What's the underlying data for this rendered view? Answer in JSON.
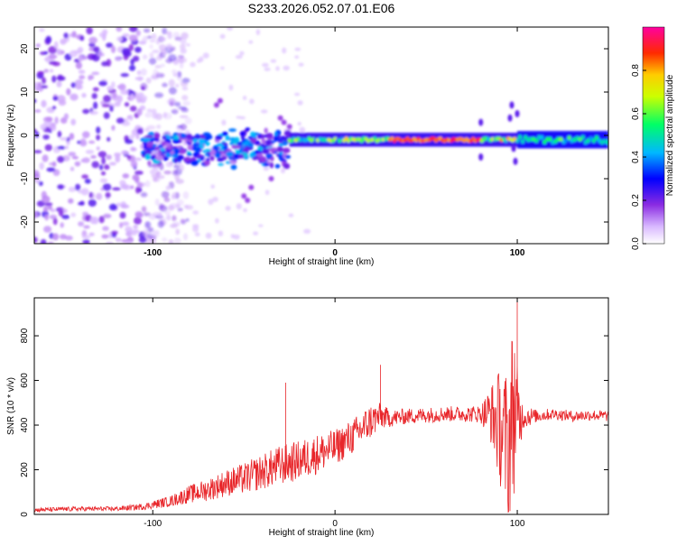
{
  "title": "S233.2026.052.07.01.E06",
  "colors": {
    "snr_line": "#e8262a",
    "text": "#000000",
    "frame": "#000000"
  },
  "chart_data": [
    {
      "type": "heatmap",
      "title": "S233.2026.052.07.01.E06",
      "xlabel": "Height of straight line (km)",
      "ylabel": "Frequency (Hz)",
      "xlim": [
        -165,
        150
      ],
      "ylim": [
        -25,
        25
      ],
      "xticks": [
        -100,
        0,
        100
      ],
      "yticks": [
        -20,
        -10,
        0,
        10,
        20
      ],
      "ytick_labels": [
        "-20",
        "-10",
        "0",
        "10",
        "20"
      ],
      "xtick_labels": [
        "-100",
        "0",
        "100"
      ],
      "grid": false,
      "colorbar": {
        "label": "Normalized spectral amplitude",
        "range": [
          0.0,
          1.0
        ],
        "ticks": [
          0.0,
          0.2,
          0.4,
          0.6,
          0.8
        ],
        "tick_labels": [
          "0.0",
          "0.2",
          "0.4",
          "0.6",
          "0.8"
        ],
        "colormap": "white-purple-blue-cyan-green-yellow-red-magenta"
      },
      "features": [
        {
          "name": "noise-field",
          "x_range": [
            -165,
            -105
          ],
          "y_range": [
            -25,
            25
          ],
          "amplitude": 0.08
        },
        {
          "name": "onset-band",
          "x_range": [
            -105,
            -25
          ],
          "center_hz": -3,
          "amplitude": 0.2
        },
        {
          "name": "signal-track",
          "x_range": [
            -25,
            100
          ],
          "center_hz": -1,
          "amplitude_peak": 0.95
        },
        {
          "name": "post-track",
          "x_range": [
            100,
            150
          ],
          "center_hz": -1,
          "amplitude": 0.35
        }
      ]
    },
    {
      "type": "line",
      "xlabel": "Height of straight line (km)",
      "ylabel": "SNR (10 * v/v)",
      "xlim": [
        -165,
        150
      ],
      "ylim": [
        0,
        970
      ],
      "xticks": [
        -100,
        0,
        100
      ],
      "yticks": [
        0,
        200,
        400,
        600,
        800
      ],
      "xtick_labels": [
        "-100",
        "0",
        "100"
      ],
      "ytick_labels": [
        "0",
        "200",
        "400",
        "600",
        "800"
      ],
      "grid": false,
      "series": [
        {
          "name": "SNR",
          "color": "#e8262a",
          "x": [
            -165,
            -140,
            -120,
            -105,
            -90,
            -80,
            -70,
            -60,
            -50,
            -40,
            -30,
            -20,
            -10,
            0,
            10,
            20,
            25,
            30,
            40,
            50,
            60,
            70,
            80,
            85,
            90,
            95,
            98,
            100,
            103,
            110,
            120,
            130,
            140,
            150
          ],
          "y": [
            20,
            25,
            25,
            35,
            60,
            90,
            110,
            140,
            160,
            190,
            220,
            240,
            270,
            300,
            350,
            420,
            440,
            430,
            440,
            445,
            450,
            450,
            450,
            455,
            400,
            300,
            500,
            420,
            440,
            440,
            450,
            440,
            445,
            440
          ],
          "jitter": [
            10,
            10,
            10,
            15,
            25,
            40,
            50,
            60,
            70,
            80,
            90,
            90,
            90,
            80,
            80,
            80,
            60,
            40,
            35,
            35,
            35,
            35,
            40,
            120,
            250,
            350,
            420,
            250,
            60,
            30,
            25,
            25,
            25,
            25
          ]
        }
      ],
      "annotations": [
        {
          "x": -27,
          "y": 590,
          "label": ""
        },
        {
          "x": 25,
          "y": 670,
          "label": ""
        },
        {
          "x": 100,
          "y": 970,
          "label": ""
        }
      ]
    }
  ]
}
